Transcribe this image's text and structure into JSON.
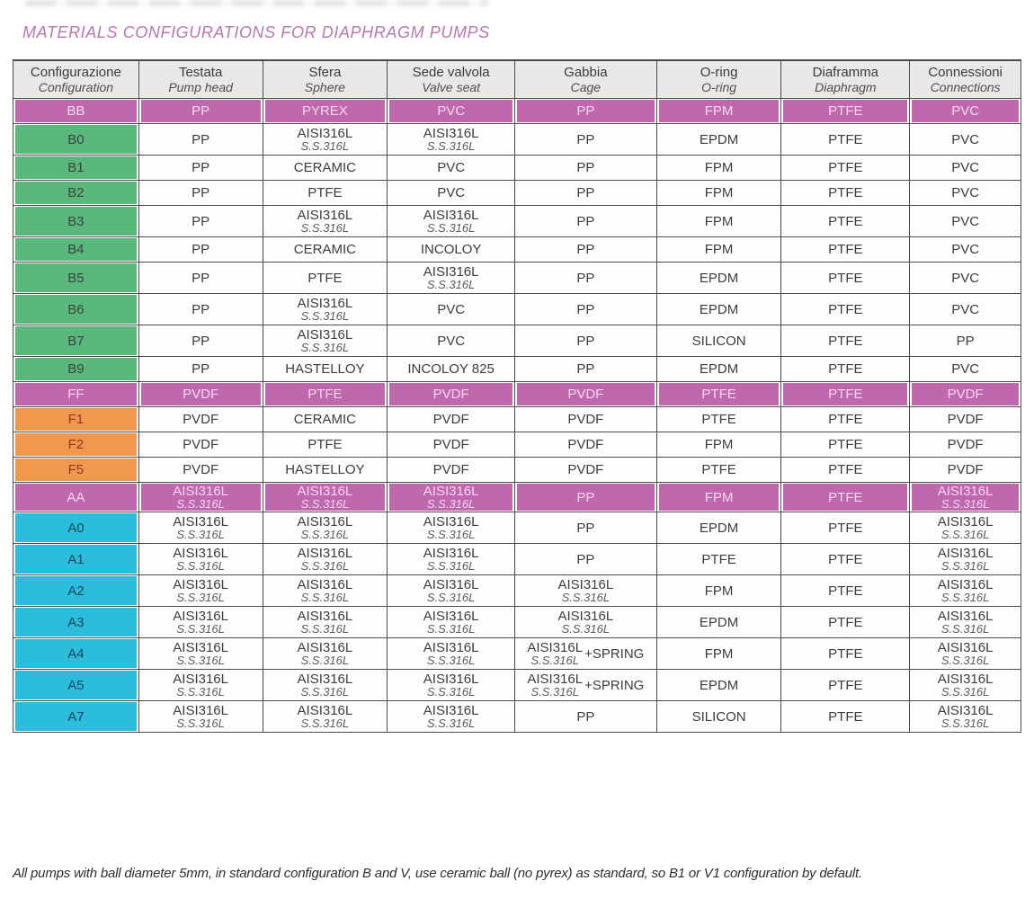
{
  "title": "MATERIALS CONFIGURATIONS FOR DIAPHRAGM PUMPS",
  "footnote": "All pumps with ball diameter 5mm, in standard configuration B and V, use ceramic ball (no pyrex) as standard, so B1 or V1 configuration by default.",
  "colors": {
    "magenta": "#bf68ae",
    "green": "#5bb87c",
    "orange": "#f0994e",
    "cyan": "#2cbcdc",
    "magenta_text": "#f8d7ef",
    "header_bg": "#e9e8e6",
    "border": "#4d4d4d",
    "title": "#b778b1"
  },
  "table": {
    "columns": [
      {
        "it": "Configurazione",
        "en": "Configuration"
      },
      {
        "it": "Testata",
        "en": "Pump head"
      },
      {
        "it": "Sfera",
        "en": "Sphere"
      },
      {
        "it": "Sede valvola",
        "en": "Valve seat"
      },
      {
        "it": "Gabbia",
        "en": "Cage"
      },
      {
        "it": "O-ring",
        "en": "O-ring"
      },
      {
        "it": "Diaframma",
        "en": "Diaphragm"
      },
      {
        "it": "Connessioni",
        "en": "Connections"
      }
    ],
    "rows": [
      {
        "id": "BB",
        "type": "magenta",
        "cells": [
          [
            "PP"
          ],
          [
            "PYREX"
          ],
          [
            "PVC"
          ],
          [
            "PP"
          ],
          [
            "FPM"
          ],
          [
            "PTFE"
          ],
          [
            "PVC"
          ]
        ]
      },
      {
        "id": "B0",
        "type": "green",
        "cells": [
          [
            "PP"
          ],
          [
            "AISI316L",
            "S.S.316L"
          ],
          [
            "AISI316L",
            "S.S.316L"
          ],
          [
            "PP"
          ],
          [
            "EPDM"
          ],
          [
            "PTFE"
          ],
          [
            "PVC"
          ]
        ]
      },
      {
        "id": "B1",
        "type": "green",
        "cells": [
          [
            "PP"
          ],
          [
            "CERAMIC"
          ],
          [
            "PVC"
          ],
          [
            "PP"
          ],
          [
            "FPM"
          ],
          [
            "PTFE"
          ],
          [
            "PVC"
          ]
        ]
      },
      {
        "id": "B2",
        "type": "green",
        "cells": [
          [
            "PP"
          ],
          [
            "PTFE"
          ],
          [
            "PVC"
          ],
          [
            "PP"
          ],
          [
            "FPM"
          ],
          [
            "PTFE"
          ],
          [
            "PVC"
          ]
        ]
      },
      {
        "id": "B3",
        "type": "green",
        "cells": [
          [
            "PP"
          ],
          [
            "AISI316L",
            "S.S.316L"
          ],
          [
            "AISI316L",
            "S.S.316L"
          ],
          [
            "PP"
          ],
          [
            "FPM"
          ],
          [
            "PTFE"
          ],
          [
            "PVC"
          ]
        ]
      },
      {
        "id": "B4",
        "type": "green",
        "cells": [
          [
            "PP"
          ],
          [
            "CERAMIC"
          ],
          [
            "INCOLOY"
          ],
          [
            "PP"
          ],
          [
            "FPM"
          ],
          [
            "PTFE"
          ],
          [
            "PVC"
          ]
        ]
      },
      {
        "id": "B5",
        "type": "green",
        "cells": [
          [
            "PP"
          ],
          [
            "PTFE"
          ],
          [
            "AISI316L",
            "S.S.316L"
          ],
          [
            "PP"
          ],
          [
            "EPDM"
          ],
          [
            "PTFE"
          ],
          [
            "PVC"
          ]
        ]
      },
      {
        "id": "B6",
        "type": "green",
        "cells": [
          [
            "PP"
          ],
          [
            "AISI316L",
            "S.S.316L"
          ],
          [
            "PVC"
          ],
          [
            "PP"
          ],
          [
            "EPDM"
          ],
          [
            "PTFE"
          ],
          [
            "PVC"
          ]
        ]
      },
      {
        "id": "B7",
        "type": "green",
        "cells": [
          [
            "PP"
          ],
          [
            "AISI316L",
            "S.S.316L"
          ],
          [
            "PVC"
          ],
          [
            "PP"
          ],
          [
            "SILICON"
          ],
          [
            "PTFE"
          ],
          [
            "PP"
          ]
        ]
      },
      {
        "id": "B9",
        "type": "green",
        "cells": [
          [
            "PP"
          ],
          [
            "HASTELLOY"
          ],
          [
            "INCOLOY 825"
          ],
          [
            "PP"
          ],
          [
            "EPDM"
          ],
          [
            "PTFE"
          ],
          [
            "PVC"
          ]
        ]
      },
      {
        "id": "FF",
        "type": "magenta",
        "cells": [
          [
            "PVDF"
          ],
          [
            "PTFE"
          ],
          [
            "PVDF"
          ],
          [
            "PVDF"
          ],
          [
            "PTFE"
          ],
          [
            "PTFE"
          ],
          [
            "PVDF"
          ]
        ]
      },
      {
        "id": "F1",
        "type": "orange",
        "cells": [
          [
            "PVDF"
          ],
          [
            "CERAMIC"
          ],
          [
            "PVDF"
          ],
          [
            "PVDF"
          ],
          [
            "PTFE"
          ],
          [
            "PTFE"
          ],
          [
            "PVDF"
          ]
        ]
      },
      {
        "id": "F2",
        "type": "orange",
        "cells": [
          [
            "PVDF"
          ],
          [
            "PTFE"
          ],
          [
            "PVDF"
          ],
          [
            "PVDF"
          ],
          [
            "FPM"
          ],
          [
            "PTFE"
          ],
          [
            "PVDF"
          ]
        ]
      },
      {
        "id": "F5",
        "type": "orange",
        "cells": [
          [
            "PVDF"
          ],
          [
            "HASTELLOY"
          ],
          [
            "PVDF"
          ],
          [
            "PVDF"
          ],
          [
            "PTFE"
          ],
          [
            "PTFE"
          ],
          [
            "PVDF"
          ]
        ]
      },
      {
        "id": "AA",
        "type": "magenta",
        "cells": [
          [
            "AISI316L",
            "S.S.316L"
          ],
          [
            "AISI316L",
            "S.S.316L"
          ],
          [
            "AISI316L",
            "S.S.316L"
          ],
          [
            "PP"
          ],
          [
            "FPM"
          ],
          [
            "PTFE"
          ],
          [
            "AISI316L",
            "S.S.316L"
          ]
        ]
      },
      {
        "id": "A0",
        "type": "cyan",
        "cells": [
          [
            "AISI316L",
            "S.S.316L"
          ],
          [
            "AISI316L",
            "S.S.316L"
          ],
          [
            "AISI316L",
            "S.S.316L"
          ],
          [
            "PP"
          ],
          [
            "EPDM"
          ],
          [
            "PTFE"
          ],
          [
            "AISI316L",
            "S.S.316L"
          ]
        ]
      },
      {
        "id": "A1",
        "type": "cyan",
        "cells": [
          [
            "AISI316L",
            "S.S.316L"
          ],
          [
            "AISI316L",
            "S.S.316L"
          ],
          [
            "AISI316L",
            "S.S.316L"
          ],
          [
            "PP"
          ],
          [
            "PTFE"
          ],
          [
            "PTFE"
          ],
          [
            "AISI316L",
            "S.S.316L"
          ]
        ]
      },
      {
        "id": "A2",
        "type": "cyan",
        "cells": [
          [
            "AISI316L",
            "S.S.316L"
          ],
          [
            "AISI316L",
            "S.S.316L"
          ],
          [
            "AISI316L",
            "S.S.316L"
          ],
          [
            "AISI316L",
            "S.S.316L"
          ],
          [
            "FPM"
          ],
          [
            "PTFE"
          ],
          [
            "AISI316L",
            "S.S.316L"
          ]
        ]
      },
      {
        "id": "A3",
        "type": "cyan",
        "cells": [
          [
            "AISI316L",
            "S.S.316L"
          ],
          [
            "AISI316L",
            "S.S.316L"
          ],
          [
            "AISI316L",
            "S.S.316L"
          ],
          [
            "AISI316L",
            "S.S.316L"
          ],
          [
            "EPDM"
          ],
          [
            "PTFE"
          ],
          [
            "AISI316L",
            "S.S.316L"
          ]
        ]
      },
      {
        "id": "A4",
        "type": "cyan",
        "cells": [
          [
            "AISI316L",
            "S.S.316L"
          ],
          [
            "AISI316L",
            "S.S.316L"
          ],
          [
            "AISI316L",
            "S.S.316L"
          ],
          [
            "AISI316L",
            "S.S.316L",
            "+SPRING"
          ],
          [
            "FPM"
          ],
          [
            "PTFE"
          ],
          [
            "AISI316L",
            "S.S.316L"
          ]
        ]
      },
      {
        "id": "A5",
        "type": "cyan",
        "cells": [
          [
            "AISI316L",
            "S.S.316L"
          ],
          [
            "AISI316L",
            "S.S.316L"
          ],
          [
            "AISI316L",
            "S.S.316L"
          ],
          [
            "AISI316L",
            "S.S.316L",
            "+SPRING"
          ],
          [
            "EPDM"
          ],
          [
            "PTFE"
          ],
          [
            "AISI316L",
            "S.S.316L"
          ]
        ]
      },
      {
        "id": "A7",
        "type": "cyan",
        "cells": [
          [
            "AISI316L",
            "S.S.316L"
          ],
          [
            "AISI316L",
            "S.S.316L"
          ],
          [
            "AISI316L",
            "S.S.316L"
          ],
          [
            "PP"
          ],
          [
            "SILICON"
          ],
          [
            "PTFE"
          ],
          [
            "AISI316L",
            "S.S.316L"
          ]
        ]
      }
    ]
  }
}
